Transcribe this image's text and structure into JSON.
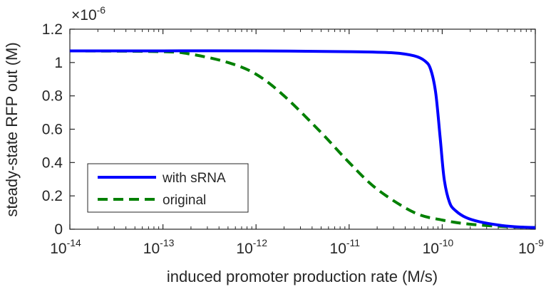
{
  "chart_data": {
    "type": "line",
    "title": "",
    "xlabel": "induced promoter production rate (M/s)",
    "ylabel": "steady-state RFP out (M)",
    "x_scale": "log",
    "xlim": [
      1e-14,
      1e-09
    ],
    "ylim": [
      0,
      1.2e-06
    ],
    "y_multiplier_label": "×10",
    "y_multiplier_exponent": "-6",
    "x_ticks": [
      {
        "base": "10",
        "exp": "-14",
        "value": 1e-14
      },
      {
        "base": "10",
        "exp": "-13",
        "value": 1e-13
      },
      {
        "base": "10",
        "exp": "-12",
        "value": 1e-12
      },
      {
        "base": "10",
        "exp": "-11",
        "value": 1e-11
      },
      {
        "base": "10",
        "exp": "-10",
        "value": 1e-10
      },
      {
        "base": "10",
        "exp": "-9",
        "value": 1e-09
      }
    ],
    "y_ticks": [
      {
        "label": "0",
        "value": 0
      },
      {
        "label": "0.2",
        "value": 2e-07
      },
      {
        "label": "0.4",
        "value": 4e-07
      },
      {
        "label": "0.6",
        "value": 6e-07
      },
      {
        "label": "0.8",
        "value": 8e-07
      },
      {
        "label": "1",
        "value": 1e-06
      },
      {
        "label": "1.2",
        "value": 1.2e-06
      }
    ],
    "grid": false,
    "legend_position": "lower-left",
    "series": [
      {
        "name": "with sRNA",
        "color": "#0000ff",
        "style": "solid",
        "x": [
          1e-14,
          1e-13,
          1e-12,
          1e-11,
          3e-11,
          5e-11,
          6.5e-11,
          7.5e-11,
          8.5e-11,
          9.5e-11,
          1.05e-10,
          1.2e-10,
          1.4e-10,
          1.8e-10,
          2.5e-10,
          4e-10,
          6e-10,
          1e-09
        ],
        "y": [
          1.07e-06,
          1.07e-06,
          1.07e-06,
          1.065e-06,
          1.058e-06,
          1.04e-06,
          1.01e-06,
          9.6e-07,
          8.2e-07,
          5.5e-07,
          3e-07,
          1.6e-07,
          1.1e-07,
          7e-08,
          4.5e-08,
          2.5e-08,
          1.5e-08,
          1e-08
        ]
      },
      {
        "name": "original",
        "color": "#008000",
        "style": "dashed",
        "x": [
          1e-14,
          1e-13,
          2e-13,
          5e-13,
          1e-12,
          2e-12,
          5e-12,
          1e-11,
          2e-11,
          5e-11,
          1e-10,
          2e-10,
          5e-10,
          1e-09
        ],
        "y": [
          1.07e-06,
          1.065e-06,
          1.05e-06,
          1e-06,
          9.3e-07,
          8e-07,
          5.8e-07,
          4e-07,
          2.4e-07,
          1e-07,
          5.5e-08,
          3e-08,
          1.5e-08,
          1e-08
        ]
      }
    ]
  }
}
